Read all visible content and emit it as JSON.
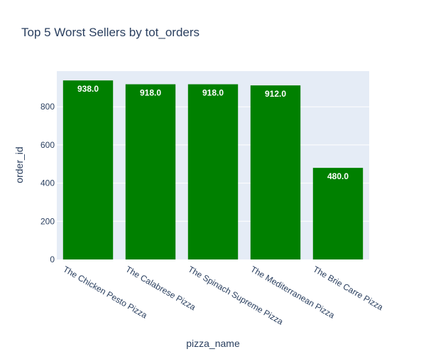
{
  "chart_data": {
    "type": "bar",
    "title": "Top 5 Worst Sellers by tot_orders",
    "xlabel": "pizza_name",
    "ylabel": "order_id",
    "categories": [
      "The Chicken Pesto Pizza",
      "The Calabrese Pizza",
      "The Spinach Supreme Pizza",
      "The Mediterranean Pizza",
      "The Brie Carre Pizza"
    ],
    "values": [
      938,
      918,
      918,
      912,
      480
    ],
    "data_labels": [
      "938.0",
      "918.0",
      "918.0",
      "912.0",
      "480.0"
    ],
    "ylim": [
      0,
      987
    ],
    "yticks": [
      0,
      200,
      400,
      600,
      800
    ],
    "ytick_labels": [
      "0",
      "200",
      "400",
      "600",
      "800"
    ],
    "grid": true,
    "colors": {
      "bar": "#008000",
      "plot_bg": "#e5ecf6",
      "grid": "#ffffff",
      "text": "#2a3f5f"
    }
  }
}
